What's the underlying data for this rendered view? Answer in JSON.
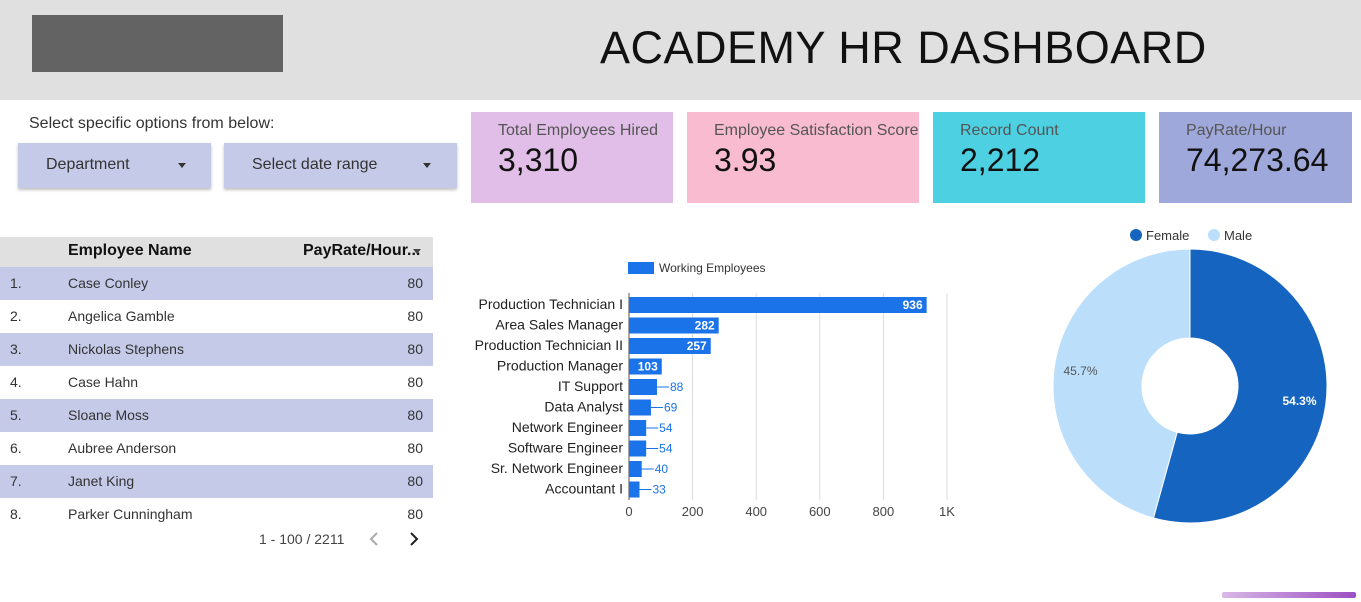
{
  "header": {
    "title": "ACADEMY HR DASHBOARD"
  },
  "filters": {
    "label": "Select specific options from below:",
    "department": "Department",
    "date_range": "Select date range"
  },
  "kpis": [
    {
      "label": "Total Employees Hired",
      "value": "3,310",
      "color": "#e1bee7"
    },
    {
      "label": "Employee Satisfaction Score",
      "value": "3.93",
      "color": "#f8bbd0"
    },
    {
      "label": "Record Count",
      "value": "2,212",
      "color": "#4dd0e1"
    },
    {
      "label": "PayRate/Hour",
      "value": "74,273.64",
      "color": "#9fa8da"
    }
  ],
  "table": {
    "columns": {
      "name": "Employee Name",
      "pay": "PayRate/Hour..."
    },
    "rows": [
      {
        "num": "1.",
        "name": "Case Conley",
        "pay": "80"
      },
      {
        "num": "2.",
        "name": "Angelica Gamble",
        "pay": "80"
      },
      {
        "num": "3.",
        "name": "Nickolas Stephens",
        "pay": "80"
      },
      {
        "num": "4.",
        "name": "Case Hahn",
        "pay": "80"
      },
      {
        "num": "5.",
        "name": "Sloane Moss",
        "pay": "80"
      },
      {
        "num": "6.",
        "name": "Aubree Anderson",
        "pay": "80"
      },
      {
        "num": "7.",
        "name": "Janet King",
        "pay": "80"
      },
      {
        "num": "8.",
        "name": "Parker Cunningham",
        "pay": "80"
      }
    ],
    "pager": "1 - 100 / 2211"
  },
  "colors": {
    "bar": "#1a73e8",
    "female": "#1565c0",
    "male": "#bbdefb",
    "row_alt": "#c5cae9"
  },
  "chart_data": [
    {
      "type": "bar",
      "orientation": "horizontal",
      "legend": "top",
      "grid": true,
      "categories": [
        "Production Technician I",
        "Area Sales Manager",
        "Production Technician II",
        "Production Manager",
        "IT Support",
        "Data Analyst",
        "Network Engineer",
        "Software Engineer",
        "Sr. Network Engineer",
        "Accountant I"
      ],
      "series": [
        {
          "name": "Working Employees",
          "values": [
            936,
            282,
            257,
            103,
            88,
            69,
            54,
            54,
            40,
            33
          ]
        }
      ],
      "xlim": [
        0,
        1000
      ],
      "xticks": [
        "0",
        "200",
        "400",
        "600",
        "800",
        "1K"
      ]
    },
    {
      "type": "pie",
      "donut": true,
      "legend": "top",
      "labels": [
        "Female",
        "Male"
      ],
      "values": [
        54.3,
        45.7
      ],
      "value_labels": [
        "54.3%",
        "45.7%"
      ]
    }
  ]
}
